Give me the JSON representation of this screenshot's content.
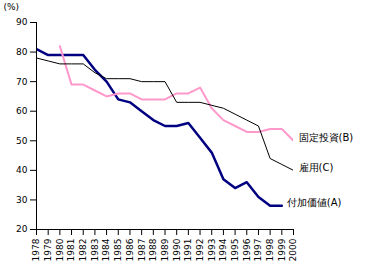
{
  "chart_data": {
    "type": "line",
    "x": [
      1978,
      1979,
      1980,
      1981,
      1982,
      1983,
      1984,
      1985,
      1986,
      1987,
      1988,
      1989,
      1990,
      1991,
      1992,
      1993,
      1994,
      1995,
      1996,
      1997,
      1998,
      1999,
      2000
    ],
    "series": [
      {
        "name": "付加価値(A)",
        "color": "#000080",
        "values": [
          81,
          79,
          79,
          79,
          79,
          74,
          70,
          64,
          63,
          60,
          57,
          55,
          55,
          56,
          51,
          46,
          37,
          34,
          36,
          31,
          28,
          28,
          null
        ]
      },
      {
        "name": "固定投資(B)",
        "color": "#ff99cc",
        "values": [
          null,
          null,
          82,
          69,
          69,
          67,
          65,
          66,
          66,
          64,
          64,
          64,
          66,
          66,
          68,
          61,
          57,
          55,
          53,
          53,
          54,
          54,
          50
        ]
      },
      {
        "name": "雇用(C)",
        "color": "#000000",
        "values": [
          78,
          77,
          76,
          76,
          76,
          73,
          71,
          71,
          71,
          70,
          70,
          70,
          63,
          63,
          63,
          62,
          61,
          59,
          57,
          55,
          44,
          42,
          40
        ]
      }
    ],
    "ylabel": "(%)",
    "xlim": [
      1978,
      2000
    ],
    "xticks": [
      1978,
      1979,
      1980,
      1981,
      1982,
      1983,
      1984,
      1985,
      1986,
      1987,
      1988,
      1989,
      1990,
      1991,
      1992,
      1993,
      1994,
      1995,
      1996,
      1997,
      1998,
      1999,
      2000
    ],
    "ylim": [
      20,
      90
    ],
    "yticks": [
      20,
      30,
      40,
      50,
      60,
      70,
      80,
      90
    ],
    "grid": false
  }
}
